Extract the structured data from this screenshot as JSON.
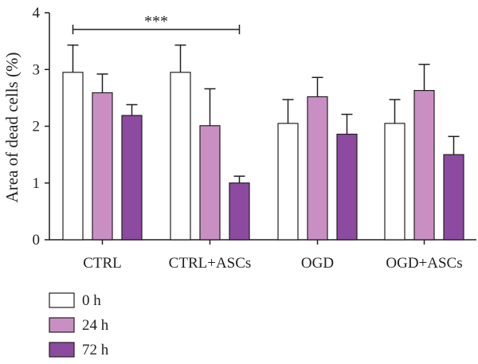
{
  "chart_data": {
    "type": "bar",
    "ylabel": "Area of dead cells (%)",
    "ylim": [
      0,
      4
    ],
    "yticks": [
      0,
      1,
      2,
      3,
      4
    ],
    "categories": [
      "CTRL",
      "CTRL+ASCs",
      "OGD",
      "OGD+ASCs"
    ],
    "series": [
      {
        "name": "0 h",
        "color": "#ffffff",
        "values": [
          2.95,
          2.95,
          2.05,
          2.05
        ],
        "errors": [
          0.48,
          0.48,
          0.42,
          0.42
        ]
      },
      {
        "name": "24 h",
        "color": "#c98fc3",
        "values": [
          2.59,
          2.01,
          2.52,
          2.63
        ],
        "errors": [
          0.33,
          0.65,
          0.34,
          0.46
        ]
      },
      {
        "name": "72 h",
        "color": "#8c4aa1",
        "values": [
          2.19,
          1.0,
          1.86,
          1.5
        ],
        "errors": [
          0.19,
          0.12,
          0.35,
          0.32
        ]
      }
    ],
    "annotation": {
      "text": "***",
      "from_category": 0,
      "to_category": 1
    },
    "legend_position": "bottom-left",
    "grid": false
  }
}
